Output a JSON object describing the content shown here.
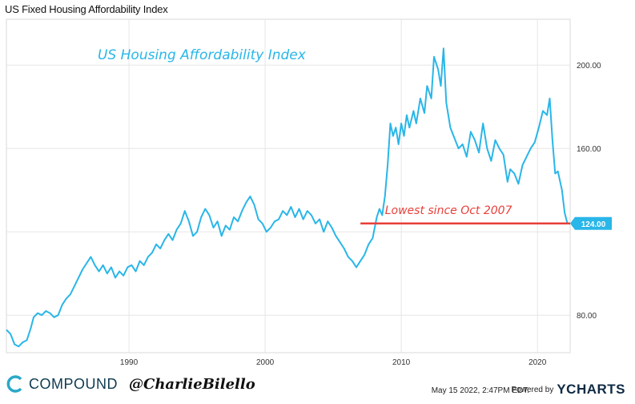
{
  "header": {
    "title": "US Fixed Housing Affordability Index"
  },
  "chart_data": {
    "type": "line",
    "title": "US Fixed Housing Affordability Index",
    "annotation_title": "US Housing Affordability Index",
    "xlabel": "",
    "ylabel": "",
    "xlim": [
      1981,
      2022.4
    ],
    "ylim": [
      62,
      222
    ],
    "x_ticks": [
      1990,
      2000,
      2010,
      2020
    ],
    "y_ticks": [
      80,
      120,
      160,
      200
    ],
    "y_tick_labels": [
      "80.00",
      "",
      "160.00",
      "200.00"
    ],
    "grid": true,
    "series": [
      {
        "color": "#29b6e8",
        "points": [
          [
            1981.0,
            73
          ],
          [
            1981.3,
            71
          ],
          [
            1981.6,
            66
          ],
          [
            1981.9,
            65
          ],
          [
            1982.2,
            67
          ],
          [
            1982.5,
            68
          ],
          [
            1982.8,
            74
          ],
          [
            1983.0,
            79
          ],
          [
            1983.3,
            81
          ],
          [
            1983.6,
            80
          ],
          [
            1983.9,
            82
          ],
          [
            1984.2,
            81
          ],
          [
            1984.5,
            79
          ],
          [
            1984.8,
            80
          ],
          [
            1985.1,
            85
          ],
          [
            1985.4,
            88
          ],
          [
            1985.7,
            90
          ],
          [
            1986.0,
            94
          ],
          [
            1986.3,
            98
          ],
          [
            1986.6,
            102
          ],
          [
            1986.9,
            105
          ],
          [
            1987.2,
            108
          ],
          [
            1987.5,
            104
          ],
          [
            1987.8,
            101
          ],
          [
            1988.1,
            104
          ],
          [
            1988.4,
            100
          ],
          [
            1988.7,
            103
          ],
          [
            1989.0,
            98
          ],
          [
            1989.3,
            101
          ],
          [
            1989.6,
            99
          ],
          [
            1989.9,
            103
          ],
          [
            1990.2,
            104
          ],
          [
            1990.5,
            101
          ],
          [
            1990.8,
            106
          ],
          [
            1991.1,
            104
          ],
          [
            1991.4,
            108
          ],
          [
            1991.7,
            110
          ],
          [
            1992.0,
            114
          ],
          [
            1992.3,
            112
          ],
          [
            1992.6,
            116
          ],
          [
            1992.9,
            119
          ],
          [
            1993.2,
            116
          ],
          [
            1993.5,
            121
          ],
          [
            1993.8,
            124
          ],
          [
            1994.1,
            130
          ],
          [
            1994.4,
            125
          ],
          [
            1994.7,
            118
          ],
          [
            1995.0,
            120
          ],
          [
            1995.3,
            127
          ],
          [
            1995.6,
            131
          ],
          [
            1995.9,
            128
          ],
          [
            1996.2,
            122
          ],
          [
            1996.5,
            125
          ],
          [
            1996.8,
            118
          ],
          [
            1997.1,
            123
          ],
          [
            1997.4,
            121
          ],
          [
            1997.7,
            127
          ],
          [
            1998.0,
            125
          ],
          [
            1998.3,
            130
          ],
          [
            1998.6,
            134
          ],
          [
            1998.9,
            137
          ],
          [
            1999.2,
            133
          ],
          [
            1999.5,
            126
          ],
          [
            1999.8,
            124
          ],
          [
            2000.1,
            120
          ],
          [
            2000.4,
            122
          ],
          [
            2000.7,
            125
          ],
          [
            2001.0,
            126
          ],
          [
            2001.3,
            130
          ],
          [
            2001.6,
            128
          ],
          [
            2001.9,
            132
          ],
          [
            2002.2,
            127
          ],
          [
            2002.5,
            131
          ],
          [
            2002.8,
            126
          ],
          [
            2003.1,
            130
          ],
          [
            2003.4,
            128
          ],
          [
            2003.7,
            124
          ],
          [
            2004.0,
            126
          ],
          [
            2004.3,
            120
          ],
          [
            2004.6,
            125
          ],
          [
            2004.9,
            122
          ],
          [
            2005.2,
            118
          ],
          [
            2005.5,
            115
          ],
          [
            2005.8,
            112
          ],
          [
            2006.1,
            108
          ],
          [
            2006.4,
            106
          ],
          [
            2006.7,
            103
          ],
          [
            2007.0,
            106
          ],
          [
            2007.3,
            109
          ],
          [
            2007.6,
            114
          ],
          [
            2007.9,
            117
          ],
          [
            2008.2,
            127
          ],
          [
            2008.4,
            131
          ],
          [
            2008.6,
            128
          ],
          [
            2008.8,
            137
          ],
          [
            2009.0,
            152
          ],
          [
            2009.2,
            172
          ],
          [
            2009.4,
            166
          ],
          [
            2009.6,
            170
          ],
          [
            2009.8,
            162
          ],
          [
            2010.0,
            172
          ],
          [
            2010.2,
            166
          ],
          [
            2010.4,
            176
          ],
          [
            2010.6,
            170
          ],
          [
            2010.9,
            178
          ],
          [
            2011.1,
            172
          ],
          [
            2011.4,
            184
          ],
          [
            2011.7,
            177
          ],
          [
            2011.9,
            190
          ],
          [
            2012.2,
            184
          ],
          [
            2012.4,
            204
          ],
          [
            2012.7,
            198
          ],
          [
            2012.9,
            190
          ],
          [
            2013.1,
            208
          ],
          [
            2013.3,
            182
          ],
          [
            2013.6,
            170
          ],
          [
            2013.9,
            165
          ],
          [
            2014.2,
            160
          ],
          [
            2014.5,
            162
          ],
          [
            2014.8,
            156
          ],
          [
            2015.1,
            168
          ],
          [
            2015.4,
            164
          ],
          [
            2015.7,
            158
          ],
          [
            2016.0,
            172
          ],
          [
            2016.3,
            160
          ],
          [
            2016.6,
            154
          ],
          [
            2016.9,
            164
          ],
          [
            2017.2,
            160
          ],
          [
            2017.5,
            157
          ],
          [
            2017.8,
            144
          ],
          [
            2018.0,
            150
          ],
          [
            2018.3,
            148
          ],
          [
            2018.6,
            143
          ],
          [
            2018.9,
            152
          ],
          [
            2019.2,
            156
          ],
          [
            2019.5,
            160
          ],
          [
            2019.8,
            163
          ],
          [
            2020.1,
            170
          ],
          [
            2020.4,
            178
          ],
          [
            2020.7,
            176
          ],
          [
            2020.9,
            184
          ],
          [
            2021.1,
            164
          ],
          [
            2021.3,
            148
          ],
          [
            2021.5,
            149
          ],
          [
            2021.8,
            140
          ],
          [
            2022.0,
            129
          ],
          [
            2022.2,
            124
          ]
        ]
      }
    ],
    "reference_line": {
      "y": 124,
      "x_start": 2007.0,
      "x_end": 2022.4,
      "color": "#e8403a",
      "label": "Lowest since Oct 2007"
    },
    "last_value_badge": {
      "text": "124.00",
      "color": "#29b6e8"
    }
  },
  "footer": {
    "brand": "COMPOUND",
    "handle": "@CharlieBilello",
    "timestamp": "May 15 2022, 2:47PM EDT.",
    "powered_by": "Powered by",
    "ycharts": "YCHARTS"
  },
  "colors": {
    "line": "#29b6e8",
    "reference": "#e8403a",
    "grid": "#e6e6e6"
  }
}
